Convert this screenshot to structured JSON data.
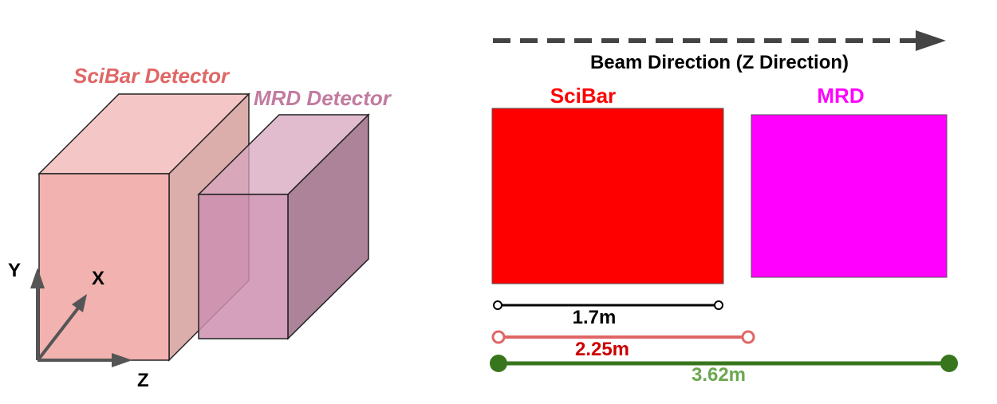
{
  "colors": {
    "scibar_text": "#e06666",
    "mrd_text": "#c27ba0",
    "scibar_front": "#f1b2b0",
    "scibar_top": "#f4c7c6",
    "scibar_side": "#dcaeab",
    "mrd_front": "#cc8fb0",
    "mrd_top": "#d7a6bf",
    "mrd_side": "#ad8399",
    "axis": "#555555",
    "scibar_box": "#ff0000",
    "mrd_box": "#ff00ff",
    "scibar_title": "#ff0000",
    "mrd_title": "#ff00ff",
    "dim_black": "#000000",
    "dim_salmon": "#e06666",
    "dim_salmon_text": "#cc0000",
    "dim_green": "#38761d",
    "dim_green_text": "#6aa84f",
    "beam_arrow": "#444444"
  },
  "left_diagram": {
    "scibar_label": "SciBar Detector",
    "mrd_label": "MRD Detector",
    "axes": {
      "y_label": "Y",
      "x_label": "X",
      "z_label": "Z"
    }
  },
  "right_diagram": {
    "beam_label": "Beam Direction (Z Direction)",
    "scibar_title": "SciBar",
    "mrd_title": "MRD",
    "dimensions": [
      {
        "value": "1.7m"
      },
      {
        "value": "2.25m"
      },
      {
        "value": "3.62m"
      }
    ]
  }
}
